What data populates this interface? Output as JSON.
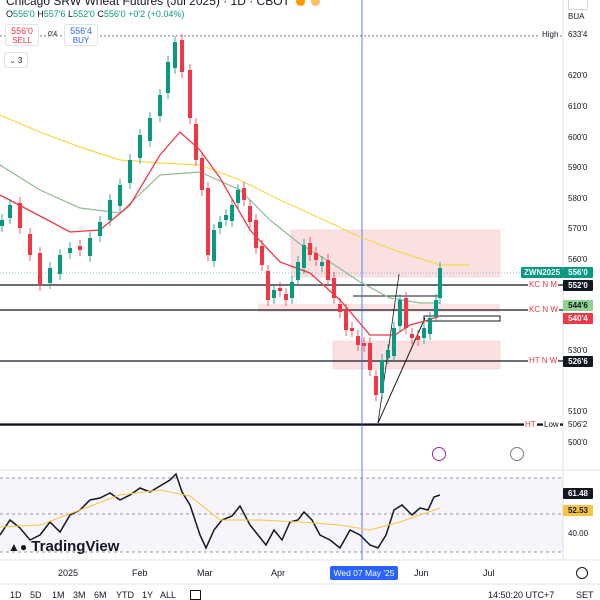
{
  "header": {
    "title": "Chicago SRW Wheat Futures (Jul 2025) · 1D · CBOT",
    "ohlc": {
      "o_label": "O",
      "o": "556'0",
      "h_label": "H",
      "h": "557'6",
      "l_label": "L",
      "l": "552'0",
      "c_label": "C",
      "c": "556'0",
      "change": "+0'2 (+0.04%)"
    }
  },
  "trade": {
    "sell_price": "556'0",
    "sell_label": "SELL",
    "buy_price": "556'4",
    "buy_label": "BUY",
    "spread": "0'4"
  },
  "collapse_label": "3",
  "right_axis": {
    "currency": "BUA",
    "ticks": [
      "620'0",
      "610'0",
      "600'0",
      "590'0",
      "580'0",
      "570'0",
      "560'0",
      "530'0",
      "510'0",
      "500'0"
    ],
    "rsi_ticks": [
      "40.00"
    ]
  },
  "price_labels": {
    "high_name": "High",
    "high_value": "633'4",
    "symbol": "ZWN2025",
    "symbol_value": "556'0",
    "kc_nm_value": "552'0",
    "green_value": "544'6",
    "red_value": "540'4",
    "ht_nw_value": "526'6",
    "low_name": "Low",
    "low_value": "506'2",
    "rsi_value": "61.48",
    "rsi_ma_value": "52.53"
  },
  "levels": {
    "kc_nm": "KC N M",
    "kc_nw": "KC N W",
    "ht_nw": "HT N W",
    "ht_low": "HT"
  },
  "x_axis": {
    "labels": [
      "2025",
      "Feb",
      "Mar",
      "Apr",
      "Jun",
      "Jul"
    ],
    "crosshair": "Wed 07 May '25"
  },
  "timeframes": [
    "1D",
    "5D",
    "1M",
    "3M",
    "6M",
    "YTD",
    "1Y",
    "ALL"
  ],
  "bottom_right": {
    "clock": "14:50:20 UTC+7",
    "session": "SET"
  },
  "logo": "TradingView",
  "colors": {
    "up": "#089981",
    "down": "#f23645",
    "ma_yellow": "#f5d94a",
    "ma_green": "#8fbc8f",
    "ma_red": "#f23645",
    "zone": "#f8c8cc",
    "crosshair": "#2962ff",
    "rsi_ma": "#f5c542",
    "accent": "#2962ff"
  },
  "icons": [
    "flash-icon",
    "calendar-icon",
    "dividend-icon",
    "goto-date-icon",
    "settings-icon",
    "usd-selector-icon"
  ]
}
